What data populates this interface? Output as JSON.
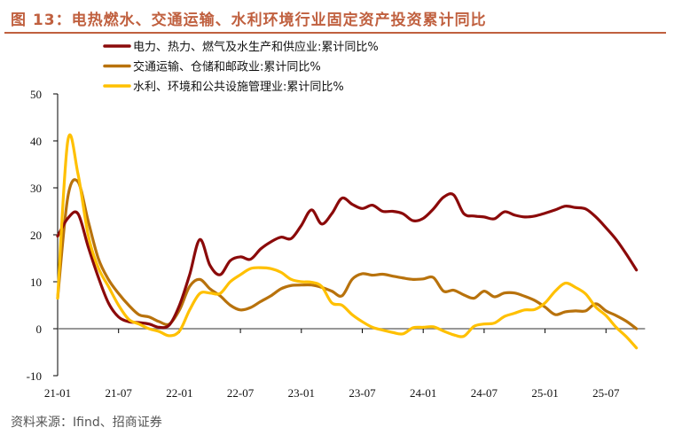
{
  "title": "图 13：电热燃水、交通运输、水利环境行业固定资产投资累计同比",
  "source": "资料来源：Ifind、招商证券",
  "chart_data": {
    "type": "line",
    "title": "图 13：电热燃水、交通运输、水利环境行业固定资产投资累计同比",
    "xlabel": "",
    "ylabel": "",
    "ylim": [
      -10,
      50
    ],
    "yticks": [
      -10,
      0,
      10,
      20,
      30,
      40,
      50
    ],
    "xticks": [
      "21-01",
      "21-07",
      "22-01",
      "22-07",
      "23-01",
      "23-07",
      "24-01",
      "24-07",
      "25-01",
      "25-07"
    ],
    "grid": false,
    "legend_position": "top-center",
    "x_start": "21-01",
    "x_end": "25-10",
    "series": [
      {
        "name": "电力、热力、燃气及水生产和供应业:累计同比%",
        "color": "#8b0a0a",
        "values": [
          19.7,
          23.5,
          24.5,
          17.5,
          11,
          5.5,
          2.5,
          1.5,
          1.3,
          1,
          0.3,
          0.8,
          5,
          11.5,
          19,
          13.5,
          11.5,
          14.5,
          15.3,
          14.8,
          17,
          18.5,
          19.5,
          19.2,
          22,
          25.3,
          22.3,
          24.5,
          27.8,
          26.5,
          25.6,
          26.3,
          25,
          25,
          24.5,
          23,
          23.5,
          25.5,
          28,
          28.5,
          24.5,
          24,
          23.8,
          23.4,
          24.9,
          24.2,
          23.8,
          24,
          24.6,
          25.3,
          26.1,
          25.8,
          25.5,
          23.8,
          21.5,
          19,
          15.9,
          12.5
        ]
      },
      {
        "name": "交通运输、仓储和邮政业:累计同比%",
        "color": "#b8720c",
        "values": [
          6.5,
          28,
          31.3,
          23,
          15,
          10.5,
          7.5,
          5,
          3,
          2.5,
          1.5,
          1,
          4,
          9,
          10.5,
          8.5,
          7,
          5,
          4,
          4.5,
          5.8,
          7,
          8.5,
          9.2,
          9.3,
          9.3,
          8.8,
          8,
          7,
          10.5,
          11.7,
          11.4,
          11.6,
          11.2,
          10.8,
          10.5,
          10.6,
          10.9,
          8,
          8.2,
          7.2,
          6.5,
          8,
          6.8,
          7.6,
          7.6,
          6.9,
          6,
          4.6,
          3,
          3.6,
          3.8,
          3.8,
          5.3,
          3.8,
          2.8,
          1.6,
          0
        ]
      },
      {
        "name": "水利、环境和公共设施管理业:累计同比%",
        "color": "#ffc000",
        "values": [
          6.5,
          40,
          33,
          20,
          13,
          9,
          5,
          2,
          1,
          0,
          -0.6,
          -1.5,
          -0.5,
          4,
          7.5,
          7.6,
          7.5,
          10,
          11.5,
          12.8,
          13,
          12.8,
          12,
          10.5,
          10,
          9.9,
          9,
          5.5,
          5,
          3,
          1.5,
          0.3,
          -0.3,
          -0.8,
          -1.1,
          0.2,
          0.3,
          0.4,
          -0.5,
          -1.3,
          -1.6,
          0.5,
          1,
          1.2,
          2.6,
          3.3,
          4,
          4.1,
          5.5,
          8,
          9.7,
          8.8,
          7.4,
          4.6,
          2.8,
          0.3,
          -1.7,
          -4.1
        ]
      }
    ]
  }
}
